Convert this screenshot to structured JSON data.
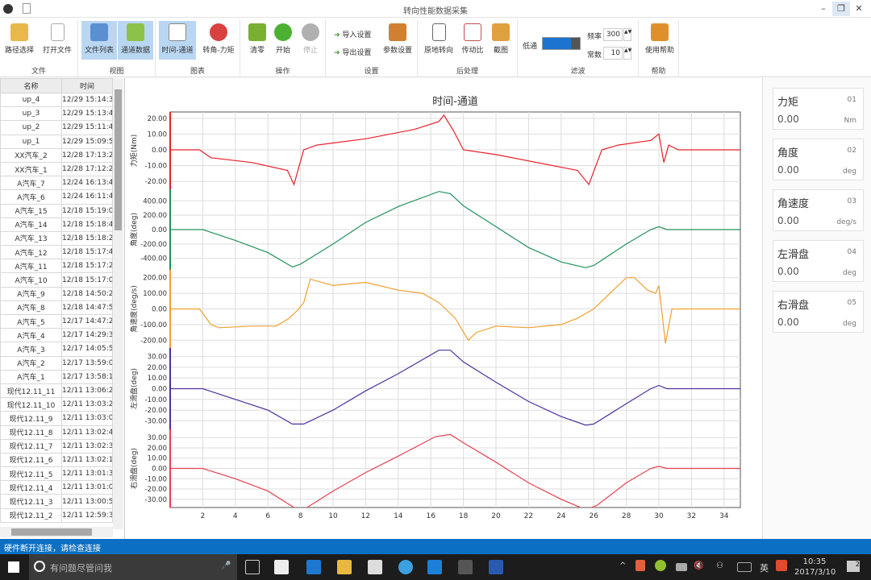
{
  "window": {
    "title": "转向性能数据采集",
    "minimize": "–",
    "restore": "❐",
    "close": "✕"
  },
  "ribbon": {
    "groups": [
      {
        "label": "文件"
      },
      {
        "label": "视图"
      },
      {
        "label": "图表"
      },
      {
        "label": "操作"
      },
      {
        "label": "设置"
      },
      {
        "label": "后处理"
      },
      {
        "label": "滤波"
      },
      {
        "label": "帮助"
      }
    ],
    "buttons": {
      "path_select": "路径选择",
      "open_file": "打开文件",
      "file_list": "文件列表",
      "channel_data": "通道数据",
      "time_channel": "时间-通道",
      "angle_torque": "转角-力矩",
      "zero": "清零",
      "start": "开始",
      "stop": "停止",
      "import_settings": "导入设置",
      "export_settings": "导出设置",
      "param_settings": "参数设置",
      "in_place_steer": "原地转向",
      "ratio": "传动比",
      "screenshot": "截图",
      "help": "使用帮助"
    },
    "filter": {
      "lowpass_label": "低通",
      "lowpass_level": 0.75,
      "freq_label": "频率",
      "freq_value": "300",
      "const_label": "常数",
      "const_value": "10"
    }
  },
  "file_list": {
    "headers": [
      "名称",
      "时间"
    ],
    "rows": [
      [
        "up_4",
        "12/29 15:14:3"
      ],
      [
        "up_3",
        "12/29 15:13:4"
      ],
      [
        "up_2",
        "12/29 15:11:4"
      ],
      [
        "up_1",
        "12/29 15:09:5"
      ],
      [
        "XX汽车_2",
        "12/28 17:13:2"
      ],
      [
        "XX汽车_1",
        "12/28 17:12:2"
      ],
      [
        "A汽车_7",
        "12/24 16:13:4"
      ],
      [
        "A汽车_6",
        "12/24 16:11:4"
      ],
      [
        "A汽车_15",
        "12/18 15:19:0"
      ],
      [
        "A汽车_14",
        "12/18 15:18:4"
      ],
      [
        "A汽车_13",
        "12/18 15:18:2"
      ],
      [
        "A汽车_12",
        "12/18 15:17:4"
      ],
      [
        "A汽车_11",
        "12/18 15:17:2"
      ],
      [
        "A汽车_10",
        "12/18 15:17:0"
      ],
      [
        "A汽车_9",
        "12/18 14:50:2"
      ],
      [
        "A汽车_8",
        "12/18 14:47:5"
      ],
      [
        "A汽车_5",
        "12/17 14:47:2"
      ],
      [
        "A汽车_4",
        "12/17 14:29:3"
      ],
      [
        "A汽车_3",
        "12/17 14:05:5"
      ],
      [
        "A汽车_2",
        "12/17 13:59:0"
      ],
      [
        "A汽车_1",
        "12/17 13:58:1"
      ],
      [
        "现代12.11_11",
        "12/11 13:06:2"
      ],
      [
        "现代12.11_10",
        "12/11 13:03:2"
      ],
      [
        "现代12.11_9",
        "12/11 13:03:0"
      ],
      [
        "现代12.11_8",
        "12/11 13:02:4"
      ],
      [
        "现代12.11_7",
        "12/11 13:02:3"
      ],
      [
        "现代12.11_6",
        "12/11 13:02:1"
      ],
      [
        "现代12.11_5",
        "12/11 13:01:3"
      ],
      [
        "现代12.11_4",
        "12/11 13:01:0"
      ],
      [
        "现代12.11_3",
        "12/11 13:00:5"
      ],
      [
        "现代12.11_2",
        "12/11 12:59:3"
      ]
    ]
  },
  "channels": [
    {
      "name": "力矩",
      "id": "01",
      "value": "0.00",
      "unit": "Nm"
    },
    {
      "name": "角度",
      "id": "02",
      "value": "0.00",
      "unit": "deg"
    },
    {
      "name": "角速度",
      "id": "03",
      "value": "0.00",
      "unit": "deg/s"
    },
    {
      "name": "左滑盘",
      "id": "04",
      "value": "0.00",
      "unit": "deg"
    },
    {
      "name": "右滑盘",
      "id": "05",
      "value": "0.00",
      "unit": "deg"
    }
  ],
  "chart_data": {
    "type": "line",
    "title": "时间-通道",
    "xlim": [
      0,
      35
    ],
    "xticks": [
      2,
      4,
      6,
      8,
      10,
      12,
      14,
      16,
      18,
      20,
      22,
      24,
      26,
      28,
      30,
      32,
      34
    ],
    "grid": true,
    "panels": [
      {
        "ylabel": "力矩(Nm)",
        "color": "#e8202a",
        "ylim": [
          -25,
          24
        ],
        "yticks": [
          "20.00",
          "10.00",
          "0.00",
          "-10.00",
          "-20.00"
        ],
        "ytick_values": [
          20,
          10,
          0,
          -10,
          -20
        ],
        "x": [
          0,
          1.8,
          2.5,
          5,
          7.2,
          7.6,
          8.2,
          9,
          12,
          15,
          16.5,
          16.8,
          17.4,
          18,
          20,
          25,
          25.7,
          26.5,
          27.5,
          29.5,
          30,
          30.3,
          30.6,
          31.2,
          35
        ],
        "y": [
          0,
          0,
          -5,
          -8,
          -13,
          -22,
          0,
          3,
          7,
          13,
          18,
          22,
          12,
          0,
          -3,
          -13,
          -22,
          0,
          3,
          6,
          10,
          -8,
          3,
          0,
          0
        ]
      },
      {
        "ylabel": "角度(deg)",
        "color": "#23915a",
        "ylim": [
          -560,
          560
        ],
        "yticks": [
          "400.00",
          "200.00",
          "0.00",
          "-200.00",
          "-400.00"
        ],
        "ytick_values": [
          400,
          200,
          0,
          -200,
          -400
        ],
        "x": [
          0,
          2,
          4,
          6,
          7.5,
          8,
          10,
          12,
          14,
          16.5,
          17.2,
          18,
          20,
          22,
          24,
          25.5,
          26,
          28,
          29.5,
          30,
          30.5,
          31,
          35
        ],
        "y": [
          0,
          0,
          -150,
          -320,
          -520,
          -480,
          -200,
          100,
          320,
          530,
          500,
          330,
          40,
          -250,
          -450,
          -530,
          -500,
          -200,
          0,
          40,
          0,
          0,
          0
        ]
      },
      {
        "ylabel": "角速度(deg/s)",
        "color": "#f0a030",
        "ylim": [
          -250,
          250
        ],
        "yticks": [
          "200.00",
          "100.00",
          "0.00",
          "-100.00",
          "-200.00"
        ],
        "ytick_values": [
          200,
          100,
          0,
          -100,
          -200
        ],
        "x": [
          0,
          1.8,
          2.5,
          3,
          5,
          6.5,
          7.3,
          7.8,
          8.2,
          8.6,
          10,
          12,
          14,
          15.5,
          16.5,
          17.5,
          18.3,
          18.8,
          20,
          22,
          24,
          25,
          26,
          27,
          28,
          28.5,
          29.3,
          29.8,
          30,
          30.4,
          30.8,
          31.2,
          35
        ],
        "y": [
          0,
          0,
          -100,
          -120,
          -110,
          -110,
          -60,
          -10,
          40,
          190,
          150,
          170,
          120,
          100,
          40,
          -60,
          -200,
          -150,
          -110,
          -120,
          -100,
          -60,
          0,
          100,
          200,
          200,
          120,
          100,
          150,
          -220,
          0,
          0,
          0
        ]
      },
      {
        "ylabel": "左滑盘(deg)",
        "color": "#5030a0",
        "ylim": [
          -38,
          38
        ],
        "yticks": [
          "30.00",
          "20.00",
          "10.00",
          "0.00",
          "-10.00",
          "-20.00",
          "-30.00"
        ],
        "ytick_values": [
          30,
          20,
          10,
          0,
          -10,
          -20,
          -30
        ],
        "x": [
          0,
          2,
          4,
          6,
          7.5,
          8.2,
          10,
          12,
          14,
          16.5,
          17.2,
          18,
          20,
          22,
          24,
          25.5,
          26,
          28,
          29.5,
          30,
          30.5,
          31,
          35
        ],
        "y": [
          0,
          0,
          -10,
          -20,
          -33,
          -33,
          -20,
          -2,
          14,
          36,
          36,
          25,
          6,
          -12,
          -26,
          -34,
          -33,
          -14,
          0,
          3,
          0,
          0,
          0
        ]
      },
      {
        "ylabel": "右滑盘(deg)",
        "color": "#e84050",
        "ylim": [
          -38,
          38
        ],
        "yticks": [
          "30.00",
          "20.00",
          "10.00",
          "0.00",
          "-10.00",
          "-20.00",
          "-30.00"
        ],
        "ytick_values": [
          30,
          20,
          10,
          0,
          -10,
          -20,
          -30
        ],
        "x": [
          0,
          2,
          4,
          6,
          7.8,
          8.4,
          10,
          12,
          14,
          16.3,
          17.2,
          18,
          20,
          22,
          24,
          25.5,
          26.2,
          28,
          29.5,
          30,
          30.5,
          31,
          35
        ],
        "y": [
          0,
          0,
          -10,
          -22,
          -40,
          -38,
          -22,
          -4,
          12,
          31,
          33,
          25,
          6,
          -14,
          -30,
          -40,
          -36,
          -14,
          0,
          2,
          0,
          0,
          0
        ]
      }
    ]
  },
  "status": {
    "text": "硬件断开连接，请检查连接"
  },
  "taskbar": {
    "search_placeholder": "有问题尽管问我",
    "ime": "英",
    "time": "10:35",
    "date": "2017/3/10",
    "notifications": "2"
  }
}
